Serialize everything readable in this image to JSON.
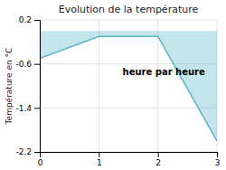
{
  "chart_data": {
    "type": "area",
    "title": "Evolution de la température",
    "ylabel": "Température en °C",
    "annotation": "heure par heure",
    "x": [
      0,
      1,
      2,
      3
    ],
    "values": [
      -0.5,
      -0.1,
      -0.1,
      -2.0
    ],
    "color": "#5ab4c8",
    "xlim": [
      0,
      3
    ],
    "ylim": [
      -2.2,
      0.2
    ],
    "xticks": [
      0,
      1,
      2,
      3
    ],
    "yticks": [
      0.2,
      -0.6,
      -1.4,
      -2.2
    ],
    "grid": true
  }
}
